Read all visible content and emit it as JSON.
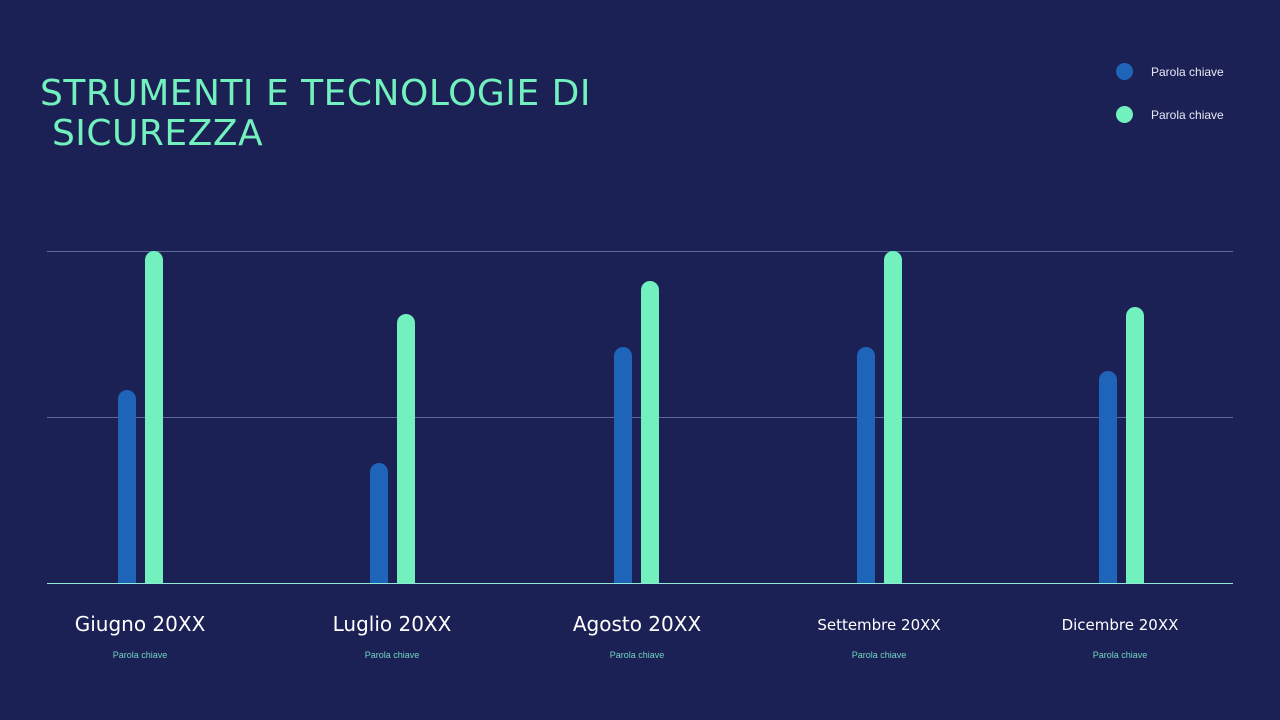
{
  "title": "STRUMENTI E TECNOLOGIE DI\n SICUREZZA",
  "legend": [
    {
      "label": "Parola chiave",
      "color": "#1e64b8"
    },
    {
      "label": "Parola chiave",
      "color": "#72f0bd"
    }
  ],
  "categories": [
    {
      "label": "Giugno 20XX",
      "sub": "Parola chiave"
    },
    {
      "label": "Luglio 20XX",
      "sub": "Parola chiave"
    },
    {
      "label": "Agosto 20XX",
      "sub": "Parola chiave"
    },
    {
      "label": "Settembre 20XX",
      "sub": "Parola chiave"
    },
    {
      "label": "Dicembre 20XX",
      "sub": "Parola chiave"
    }
  ],
  "chart_data": {
    "type": "bar",
    "title": "STRUMENTI E TECNOLOGIE DI SICUREZZA",
    "categories": [
      "Giugno 20XX",
      "Luglio 20XX",
      "Agosto 20XX",
      "Settembre 20XX",
      "Dicembre 20XX"
    ],
    "series": [
      {
        "name": "Parola chiave",
        "color": "#1e64b8",
        "values": [
          58,
          36,
          71,
          71,
          64
        ]
      },
      {
        "name": "Parola chiave",
        "color": "#72f0bd",
        "values": [
          100,
          81,
          91,
          100,
          83
        ]
      }
    ],
    "xlabel": "",
    "ylabel": "",
    "ylim": [
      0,
      100
    ],
    "grid": true,
    "legend_position": "top-right"
  }
}
